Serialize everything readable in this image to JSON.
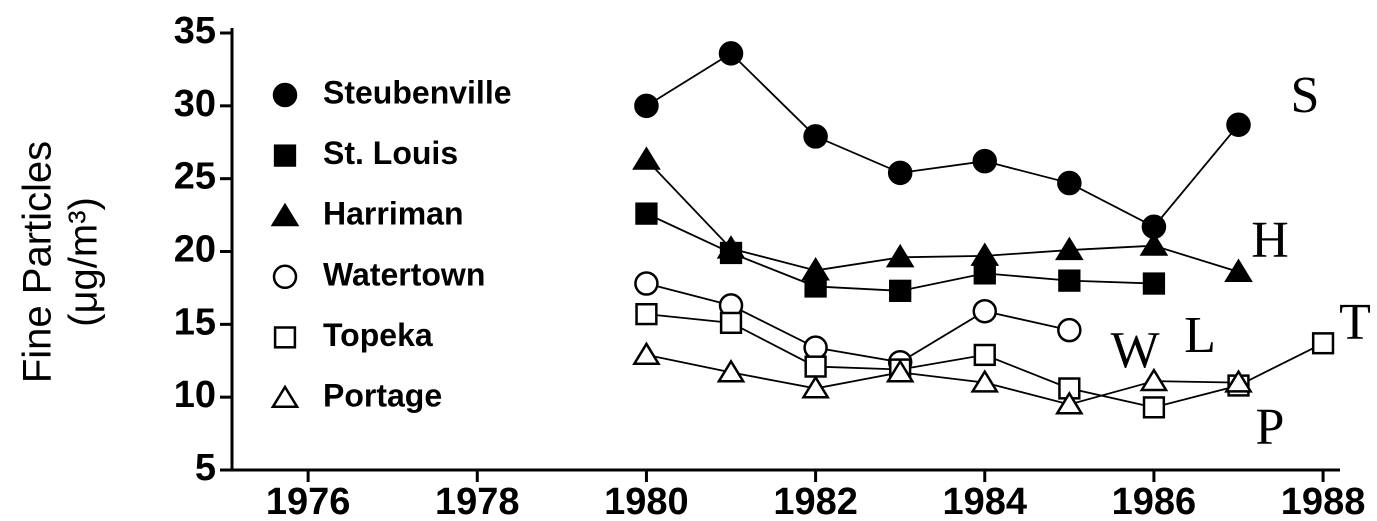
{
  "chart_data": {
    "type": "line",
    "y_label": [
      "Fine Particles",
      "(μg/m³)"
    ],
    "x": [
      1980,
      1981,
      1982,
      1983,
      1984,
      1985,
      1986,
      1987,
      1988
    ],
    "series": [
      {
        "name": "Steubenville",
        "color": "#000000",
        "marker": "circle",
        "filled": true,
        "values": [
          30.0,
          33.6,
          27.9,
          25.4,
          26.2,
          24.7,
          21.7,
          28.7,
          null
        ]
      },
      {
        "name": "St. Louis",
        "color": "#000000",
        "marker": "square",
        "filled": true,
        "values": [
          22.6,
          19.9,
          17.6,
          17.3,
          18.5,
          18.0,
          17.8,
          null,
          null
        ]
      },
      {
        "name": "Harriman",
        "color": "#000000",
        "marker": "triangle",
        "filled": true,
        "values": [
          26.3,
          20.2,
          18.7,
          19.6,
          19.7,
          20.1,
          20.4,
          18.6,
          null
        ]
      },
      {
        "name": "Watertown",
        "color": "#000000",
        "marker": "circle",
        "filled": false,
        "values": [
          17.8,
          16.3,
          13.4,
          12.4,
          15.9,
          14.6,
          null,
          null,
          null
        ]
      },
      {
        "name": "Topeka",
        "color": "#000000",
        "marker": "square",
        "filled": false,
        "values": [
          15.7,
          15.1,
          12.1,
          11.9,
          12.9,
          10.6,
          9.3,
          10.8,
          13.7
        ]
      },
      {
        "name": "Portage",
        "color": "#000000",
        "marker": "triangle",
        "filled": false,
        "values": [
          12.9,
          11.7,
          10.6,
          11.7,
          11.0,
          9.5,
          11.1,
          11.0,
          null
        ]
      }
    ],
    "annotations": [
      "S",
      "H",
      "T",
      "L",
      "W",
      "P"
    ],
    "xlim": [
      1975.1,
      1988.2
    ],
    "xticks": [
      1976,
      1978,
      1980,
      1982,
      1984,
      1986,
      1988
    ],
    "ylim": [
      5,
      35
    ],
    "yticks": [
      5,
      10,
      15,
      20,
      25,
      30,
      35
    ],
    "legend": "upper left",
    "grid": false
  }
}
